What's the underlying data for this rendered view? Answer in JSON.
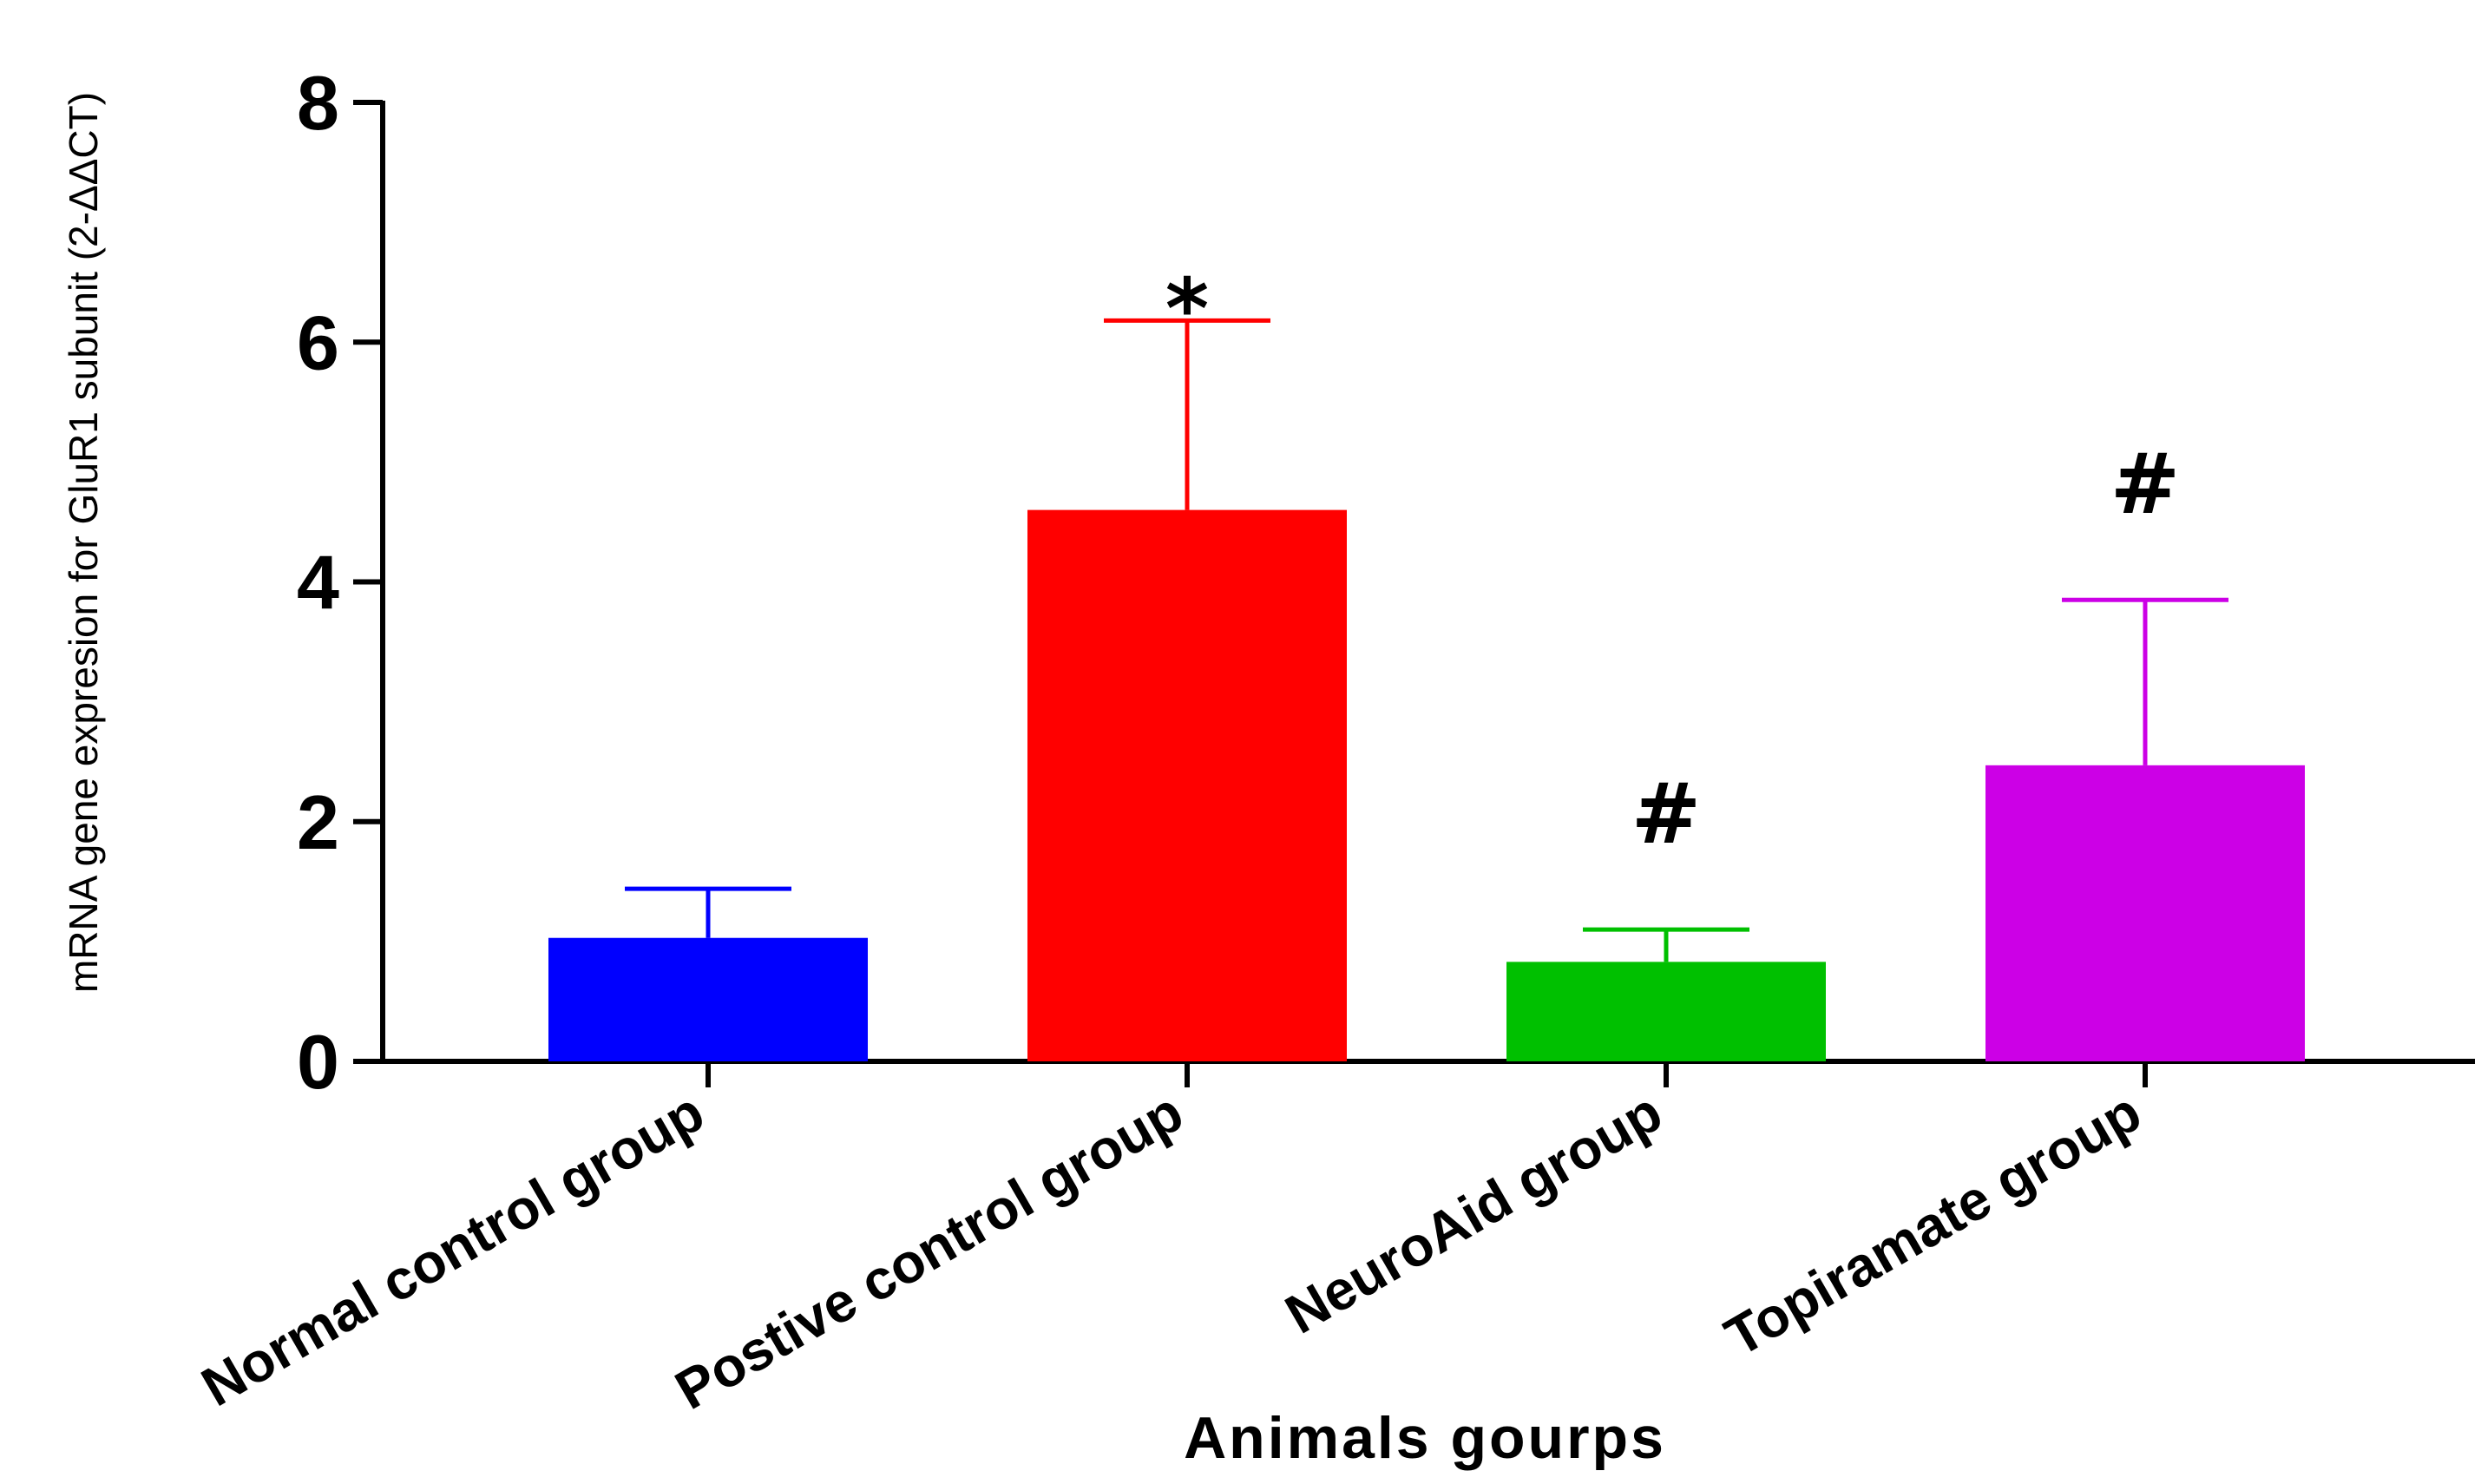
{
  "chart_data": {
    "type": "bar",
    "categories": [
      "Normal control group",
      "Postive control group",
      "NeuroAid group",
      "Topiramate group"
    ],
    "values": [
      1.03,
      4.6,
      0.83,
      2.47
    ],
    "errors": [
      0.41,
      1.58,
      0.27,
      1.38
    ],
    "significance": [
      "",
      "*",
      "#",
      "#"
    ],
    "colors": [
      "#0000ff",
      "#ff0000",
      "#00c000",
      "#cc00e6"
    ],
    "xlabel": "Animals gourps",
    "ylabel": "mRNA gene expresion for GluR1 subunit (2-ΔΔCT)",
    "ylim": [
      0,
      8
    ],
    "yticks": [
      "0",
      "2",
      "4",
      "6",
      "8"
    ],
    "grid": false,
    "legend": "none"
  }
}
